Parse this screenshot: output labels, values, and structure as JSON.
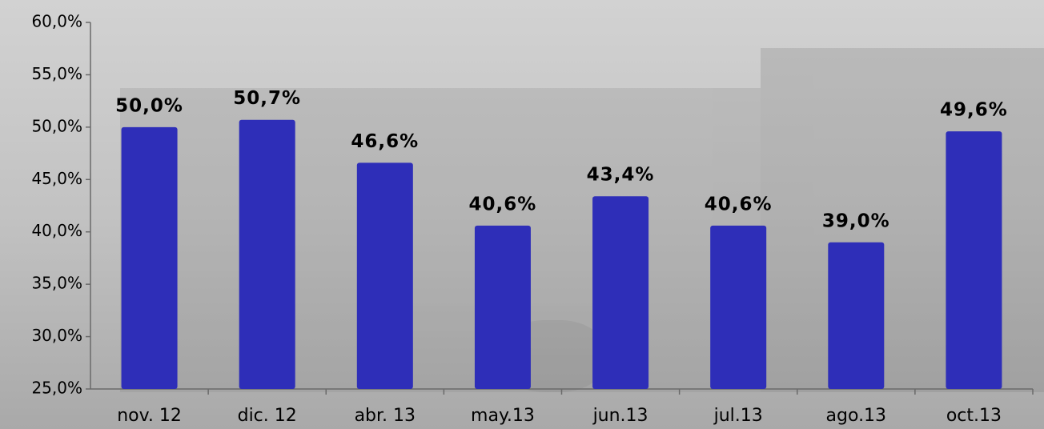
{
  "chart_data": {
    "type": "bar",
    "categories": [
      "nov. 12",
      "dic. 12",
      "abr. 13",
      "may.13",
      "jun.13",
      "jul.13",
      "ago.13",
      "oct.13"
    ],
    "values": [
      50.0,
      50.7,
      46.6,
      40.6,
      43.4,
      40.6,
      39.0,
      49.6
    ],
    "value_labels": [
      "50,0%",
      "50,7%",
      "46,6%",
      "40,6%",
      "43,4%",
      "40,6%",
      "39,0%",
      "49,6%"
    ],
    "color": "#2e2eb8",
    "ylim": [
      25,
      60
    ],
    "yticks": [
      {
        "value": 25,
        "label": "25,0%"
      },
      {
        "value": 30,
        "label": "30,0%"
      },
      {
        "value": 35,
        "label": "35,0%"
      },
      {
        "value": 40,
        "label": "40,0%"
      },
      {
        "value": 45,
        "label": "45,0%"
      },
      {
        "value": 50,
        "label": "50,0%"
      },
      {
        "value": 55,
        "label": "55,0%"
      },
      {
        "value": 60,
        "label": "60,0%"
      }
    ],
    "grid": false
  }
}
